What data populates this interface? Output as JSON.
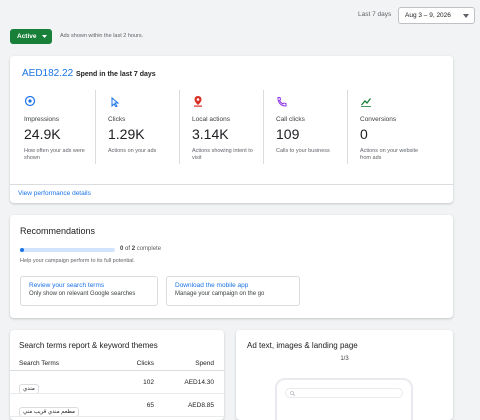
{
  "header": {
    "range_label": "Last 7 days",
    "date_range": "Aug 3 – 9, 2026",
    "status": "Active",
    "status_note": "Ads shown within the last 2 hours."
  },
  "summary": {
    "spend": "AED182.22",
    "spend_label": "Spend in the last 7 days",
    "metrics": [
      {
        "label": "Impressions",
        "value": "24.9K",
        "desc": "How often your ads were shown"
      },
      {
        "label": "Clicks",
        "value": "1.29K",
        "desc": "Actions on your ads"
      },
      {
        "label": "Local actions",
        "value": "3.14K",
        "desc": "Actions showing intent to visit"
      },
      {
        "label": "Call clicks",
        "value": "109",
        "desc": "Calls to your business"
      },
      {
        "label": "Conversions",
        "value": "0",
        "desc": "Actions on your website from ads"
      }
    ],
    "details_link": "View performance details"
  },
  "recommendations": {
    "title": "Recommendations",
    "progress": {
      "done": 0,
      "of": "of",
      "total": 2,
      "label": "complete"
    },
    "help": "Help your campaign perform to its full potential.",
    "items": [
      {
        "title": "Review your search terms",
        "desc": "Only show on relevant Google searches"
      },
      {
        "title": "Download the mobile app",
        "desc": "Manage your campaign on the go"
      }
    ]
  },
  "search_terms": {
    "title": "Search terms report & keyword themes",
    "columns": [
      "Search Terms",
      "Clicks",
      "Spend"
    ],
    "rows": [
      [
        "مندي",
        102,
        "AED14.30"
      ],
      [
        "مطعم مندي قريب مني",
        65,
        "AED8.85"
      ]
    ]
  },
  "ad_preview": {
    "title": "Ad text, images & landing page",
    "pager": "1/3"
  }
}
